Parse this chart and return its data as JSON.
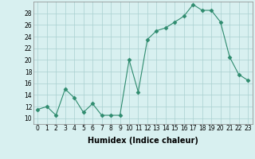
{
  "x": [
    0,
    1,
    2,
    3,
    4,
    5,
    6,
    7,
    8,
    9,
    10,
    11,
    12,
    13,
    14,
    15,
    16,
    17,
    18,
    19,
    20,
    21,
    22,
    23
  ],
  "y": [
    11.5,
    12,
    10.5,
    15,
    13.5,
    11,
    12.5,
    10.5,
    10.5,
    10.5,
    20,
    14.5,
    23.5,
    25,
    25.5,
    26.5,
    27.5,
    29.5,
    28.5,
    28.5,
    26.5,
    20.5,
    17.5,
    16.5
  ],
  "xlabel": "Humidex (Indice chaleur)",
  "ylim": [
    9,
    30
  ],
  "xlim": [
    -0.5,
    23.5
  ],
  "yticks": [
    10,
    12,
    14,
    16,
    18,
    20,
    22,
    24,
    26,
    28
  ],
  "xticks": [
    0,
    1,
    2,
    3,
    4,
    5,
    6,
    7,
    8,
    9,
    10,
    11,
    12,
    13,
    14,
    15,
    16,
    17,
    18,
    19,
    20,
    21,
    22,
    23
  ],
  "line_color": "#2e8b6e",
  "marker": "D",
  "marker_size": 2.5,
  "bg_color": "#d8f0f0",
  "grid_color": "#aacfcf",
  "grid_major_color": "#c8e4e4",
  "xlabel_fontsize": 7,
  "tick_fontsize": 5.5
}
